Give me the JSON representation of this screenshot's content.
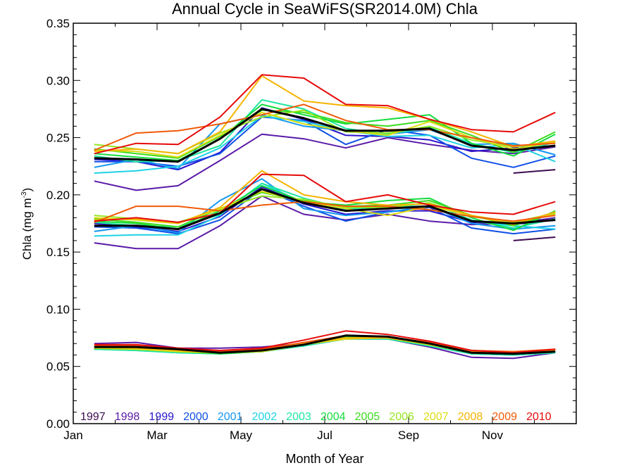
{
  "chart_data": {
    "type": "line",
    "title": "Annual Cycle in SeaWiFS(SR2014.0M) Chla",
    "xlabel": "Month of Year",
    "ylabel": "Chla (mg m",
    "ylabel_sup": "-3",
    "ylabel_close": ")",
    "xlim": [
      0,
      12
    ],
    "ylim": [
      0,
      0.35
    ],
    "xticks": [
      {
        "label": "Jan",
        "x": 0
      },
      {
        "label": "Mar",
        "x": 2
      },
      {
        "label": "May",
        "x": 4
      },
      {
        "label": "Jul",
        "x": 6
      },
      {
        "label": "Sep",
        "x": 8
      },
      {
        "label": "Nov",
        "x": 10
      }
    ],
    "yticks": [
      {
        "label": "0.00",
        "y": 0.0
      },
      {
        "label": "0.05",
        "y": 0.05
      },
      {
        "label": "0.10",
        "y": 0.1
      },
      {
        "label": "0.15",
        "y": 0.15
      },
      {
        "label": "0.20",
        "y": 0.2
      },
      {
        "label": "0.25",
        "y": 0.25
      },
      {
        "label": "0.30",
        "y": 0.3
      },
      {
        "label": "0.35",
        "y": 0.35
      }
    ],
    "x": [
      0.5,
      1.5,
      2.5,
      3.5,
      4.5,
      5.5,
      6.5,
      7.5,
      8.5,
      9.5,
      10.5,
      11.5
    ],
    "groups": [
      "upper",
      "middle",
      "lower"
    ],
    "series": [
      {
        "name": "1997",
        "color": "#3d0a4f",
        "upper": [
          null,
          null,
          null,
          null,
          null,
          null,
          null,
          null,
          null,
          null,
          0.219,
          0.222
        ],
        "middle": [
          null,
          null,
          null,
          null,
          null,
          null,
          null,
          null,
          null,
          null,
          0.16,
          0.163
        ],
        "lower": [
          null,
          null,
          null,
          null,
          null,
          null,
          null,
          null,
          null,
          null,
          0.061,
          0.063
        ]
      },
      {
        "name": "1998",
        "color": "#5a1aa8",
        "upper": [
          0.212,
          0.204,
          0.208,
          0.23,
          0.253,
          0.249,
          0.241,
          0.25,
          0.244,
          0.239,
          0.236,
          0.242
        ],
        "middle": [
          0.158,
          0.153,
          0.153,
          0.173,
          0.199,
          0.183,
          0.178,
          0.183,
          0.177,
          0.174,
          0.175,
          0.18
        ],
        "lower": [
          0.07,
          0.071,
          0.066,
          0.066,
          0.067,
          0.07,
          0.076,
          0.074,
          0.067,
          0.058,
          0.057,
          0.062
        ]
      },
      {
        "name": "1999",
        "color": "#2a14cc",
        "upper": [
          0.231,
          0.229,
          0.222,
          0.237,
          0.276,
          0.266,
          0.252,
          0.251,
          0.248,
          0.238,
          0.241,
          0.243
        ],
        "middle": [
          0.175,
          0.172,
          0.168,
          0.181,
          0.207,
          0.192,
          0.183,
          0.186,
          0.186,
          0.176,
          0.174,
          0.178
        ],
        "lower": [
          0.066,
          0.066,
          0.065,
          0.063,
          0.064,
          0.069,
          0.075,
          0.075,
          0.069,
          0.061,
          0.06,
          0.063
        ]
      },
      {
        "name": "2000",
        "color": "#0f4fe6",
        "upper": [
          0.229,
          0.229,
          0.225,
          0.236,
          0.268,
          0.265,
          0.244,
          0.257,
          0.252,
          0.232,
          0.224,
          0.234
        ],
        "middle": [
          0.172,
          0.171,
          0.166,
          0.178,
          0.205,
          0.19,
          0.177,
          0.185,
          0.189,
          0.171,
          0.166,
          0.17
        ],
        "lower": [
          0.066,
          0.066,
          0.064,
          0.062,
          0.063,
          0.069,
          0.076,
          0.075,
          0.07,
          0.062,
          0.06,
          0.062
        ]
      },
      {
        "name": "2001",
        "color": "#1496f0",
        "upper": [
          0.224,
          0.231,
          0.223,
          0.262,
          0.27,
          0.26,
          0.256,
          0.253,
          0.257,
          0.244,
          0.245,
          0.235
        ],
        "middle": [
          0.168,
          0.173,
          0.167,
          0.195,
          0.214,
          0.188,
          0.182,
          0.185,
          0.19,
          0.175,
          0.17,
          0.173
        ],
        "lower": [
          0.065,
          0.065,
          0.063,
          0.062,
          0.064,
          0.068,
          0.074,
          0.074,
          0.068,
          0.061,
          0.06,
          0.062
        ]
      },
      {
        "name": "2002",
        "color": "#1ed2e6",
        "upper": [
          0.219,
          0.221,
          0.225,
          0.241,
          0.269,
          0.264,
          0.256,
          0.251,
          0.252,
          0.241,
          0.244,
          0.229
        ],
        "middle": [
          0.164,
          0.165,
          0.165,
          0.182,
          0.21,
          0.193,
          0.187,
          0.19,
          0.19,
          0.177,
          0.173,
          0.17
        ],
        "lower": [
          0.065,
          0.064,
          0.062,
          0.061,
          0.063,
          0.068,
          0.074,
          0.074,
          0.068,
          0.061,
          0.06,
          0.062
        ]
      },
      {
        "name": "2003",
        "color": "#1ee6a0",
        "upper": [
          0.234,
          0.229,
          0.23,
          0.243,
          0.283,
          0.275,
          0.258,
          0.253,
          0.259,
          0.245,
          0.237,
          0.246
        ],
        "middle": [
          0.176,
          0.173,
          0.172,
          0.183,
          0.21,
          0.197,
          0.188,
          0.189,
          0.193,
          0.178,
          0.171,
          0.179
        ],
        "lower": [
          0.065,
          0.064,
          0.062,
          0.061,
          0.063,
          0.068,
          0.075,
          0.074,
          0.068,
          0.061,
          0.06,
          0.062
        ]
      },
      {
        "name": "2004",
        "color": "#14dc3c",
        "upper": [
          0.236,
          0.233,
          0.23,
          0.249,
          0.279,
          0.27,
          0.262,
          0.266,
          0.27,
          0.245,
          0.234,
          0.253
        ],
        "middle": [
          0.177,
          0.175,
          0.17,
          0.186,
          0.208,
          0.194,
          0.191,
          0.195,
          0.197,
          0.18,
          0.169,
          0.186
        ],
        "lower": [
          0.066,
          0.065,
          0.063,
          0.061,
          0.063,
          0.069,
          0.076,
          0.075,
          0.069,
          0.062,
          0.061,
          0.063
        ]
      },
      {
        "name": "2005",
        "color": "#3cdc1e",
        "upper": [
          0.24,
          0.236,
          0.232,
          0.251,
          0.274,
          0.272,
          0.263,
          0.26,
          0.265,
          0.252,
          0.237,
          0.255
        ],
        "middle": [
          0.179,
          0.176,
          0.172,
          0.188,
          0.202,
          0.195,
          0.19,
          0.191,
          0.195,
          0.182,
          0.173,
          0.184
        ],
        "lower": [
          0.066,
          0.065,
          0.063,
          0.062,
          0.063,
          0.069,
          0.075,
          0.075,
          0.069,
          0.062,
          0.061,
          0.063
        ]
      },
      {
        "name": "2006",
        "color": "#96e61e",
        "upper": [
          0.244,
          0.24,
          0.236,
          0.254,
          0.268,
          0.274,
          0.255,
          0.254,
          0.26,
          0.248,
          0.242,
          0.246
        ],
        "middle": [
          0.182,
          0.179,
          0.176,
          0.187,
          0.199,
          0.196,
          0.189,
          0.189,
          0.193,
          0.181,
          0.176,
          0.184
        ],
        "lower": [
          0.067,
          0.066,
          0.064,
          0.062,
          0.064,
          0.069,
          0.075,
          0.075,
          0.069,
          0.062,
          0.061,
          0.063
        ]
      },
      {
        "name": "2007",
        "color": "#dcdc14",
        "upper": [
          0.239,
          0.238,
          0.233,
          0.252,
          0.272,
          0.262,
          0.256,
          0.252,
          0.264,
          0.25,
          0.24,
          0.246
        ],
        "middle": [
          0.18,
          0.178,
          0.175,
          0.188,
          0.203,
          0.194,
          0.188,
          0.182,
          0.19,
          0.182,
          0.176,
          0.183
        ],
        "lower": [
          0.066,
          0.065,
          0.063,
          0.062,
          0.063,
          0.069,
          0.074,
          0.075,
          0.069,
          0.062,
          0.061,
          0.063
        ]
      },
      {
        "name": "2008",
        "color": "#f5b400",
        "upper": [
          0.238,
          0.24,
          0.236,
          0.255,
          0.304,
          0.282,
          0.278,
          0.276,
          0.266,
          0.255,
          0.242,
          0.247
        ],
        "middle": [
          0.178,
          0.179,
          0.175,
          0.189,
          0.221,
          0.2,
          0.194,
          0.191,
          0.192,
          0.182,
          0.174,
          0.185
        ],
        "lower": [
          0.067,
          0.066,
          0.064,
          0.062,
          0.064,
          0.07,
          0.075,
          0.075,
          0.07,
          0.063,
          0.062,
          0.064
        ]
      },
      {
        "name": "2009",
        "color": "#f05a0a",
        "upper": [
          0.239,
          0.254,
          0.256,
          0.262,
          0.27,
          0.279,
          0.265,
          0.257,
          0.257,
          0.25,
          0.243,
          0.245
        ],
        "middle": [
          0.176,
          0.19,
          0.19,
          0.186,
          0.191,
          0.194,
          0.19,
          0.19,
          0.187,
          0.181,
          0.177,
          0.182
        ],
        "lower": [
          0.068,
          0.068,
          0.066,
          0.063,
          0.065,
          0.071,
          0.077,
          0.076,
          0.071,
          0.064,
          0.063,
          0.065
        ]
      },
      {
        "name": "2010",
        "color": "#e60a0a",
        "upper": [
          0.236,
          0.245,
          0.244,
          0.268,
          0.305,
          0.302,
          0.279,
          0.278,
          0.266,
          0.257,
          0.255,
          0.272
        ],
        "middle": [
          0.177,
          0.18,
          0.176,
          0.184,
          0.218,
          0.217,
          0.194,
          0.2,
          0.191,
          0.185,
          0.183,
          0.194
        ],
        "lower": [
          0.069,
          0.069,
          0.066,
          0.064,
          0.066,
          0.073,
          0.081,
          0.078,
          0.072,
          0.064,
          0.062,
          0.065
        ]
      }
    ],
    "mean": {
      "color": "#000000",
      "upper": [
        0.232,
        0.231,
        0.229,
        0.249,
        0.275,
        0.267,
        0.256,
        0.256,
        0.258,
        0.243,
        0.239,
        0.243
      ],
      "middle": [
        0.173,
        0.173,
        0.17,
        0.184,
        0.205,
        0.193,
        0.186,
        0.188,
        0.19,
        0.177,
        0.175,
        0.178
      ],
      "lower": [
        0.067,
        0.067,
        0.065,
        0.062,
        0.064,
        0.069,
        0.077,
        0.076,
        0.07,
        0.062,
        0.061,
        0.063
      ]
    },
    "grid": false,
    "legend": "bottom"
  }
}
